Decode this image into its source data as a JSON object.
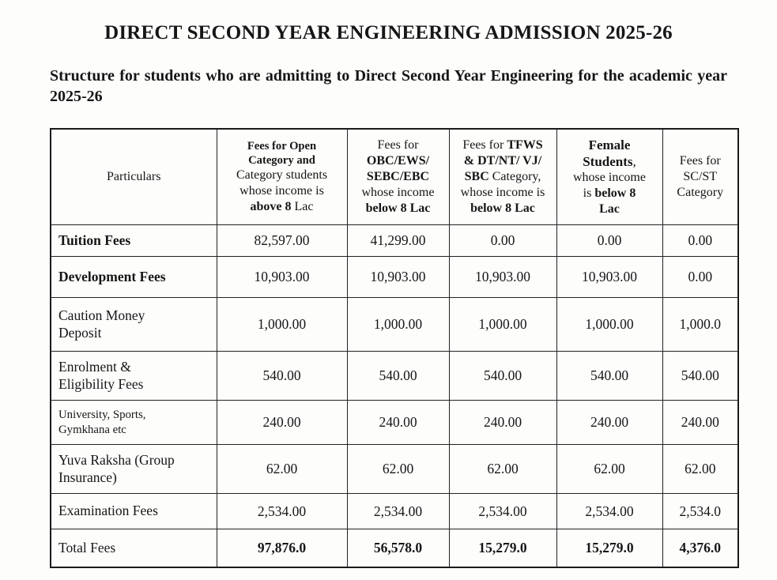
{
  "document": {
    "title": "DIRECT SECOND YEAR ENGINEERING ADMISSION 2025-26",
    "subtitle": "Structure for students who are admitting to Direct Second Year Engineering for the academic year 2025-26"
  },
  "table": {
    "header": {
      "particulars": "Particulars",
      "columns": [
        {
          "id": "open",
          "lines": [
            [
              {
                "t": "Fees for Open",
                "b": true
              }
            ],
            [
              {
                "t": "Category ",
                "b": true
              },
              {
                "t": "and",
                "b": true
              }
            ],
            [
              {
                "t": "Category students",
                "b": false
              }
            ],
            [
              {
                "t": "whose income is",
                "b": false
              }
            ],
            [
              {
                "t": "above 8",
                "b": true
              },
              {
                "t": " Lac",
                "b": false
              }
            ]
          ]
        },
        {
          "id": "obc-ews-sebc-ebc",
          "lines": [
            [
              {
                "t": "Fees for",
                "b": false
              }
            ],
            [
              {
                "t": "OBC/EWS/",
                "b": true
              }
            ],
            [
              {
                "t": "SEBC/EBC",
                "b": true
              }
            ],
            [
              {
                "t": "whose income",
                "b": false
              }
            ],
            [
              {
                "t": "below 8 Lac",
                "b": true
              }
            ]
          ]
        },
        {
          "id": "tfws-dt-nt-vj-sbc",
          "lines": [
            [
              {
                "t": "Fees for ",
                "b": false
              },
              {
                "t": "TFWS",
                "b": true
              }
            ],
            [
              {
                "t": "& DT/NT/ VJ/",
                "b": true
              }
            ],
            [
              {
                "t": "SBC",
                "b": true
              },
              {
                "t": " Category,",
                "b": false
              }
            ],
            [
              {
                "t": "whose income is",
                "b": false
              }
            ],
            [
              {
                "t": "below 8 Lac",
                "b": true
              }
            ]
          ]
        },
        {
          "id": "female",
          "lines": [
            [
              {
                "t": "Female",
                "b": true
              }
            ],
            [
              {
                "t": "Students",
                "b": true
              },
              {
                "t": ",",
                "b": false
              }
            ],
            [
              {
                "t": "whose income",
                "b": false
              }
            ],
            [
              {
                "t": "is ",
                "b": false
              },
              {
                "t": "below 8",
                "b": true
              }
            ],
            [
              {
                "t": "Lac",
                "b": true
              }
            ]
          ]
        },
        {
          "id": "sc-st",
          "lines": [
            [
              {
                "t": "Fees for",
                "b": false
              }
            ],
            [
              {
                "t": "SC/ST",
                "b": false
              }
            ],
            [
              {
                "t": "Category",
                "b": false
              }
            ]
          ]
        }
      ]
    },
    "rows": [
      {
        "label": "Tuition Fees",
        "label_bold": true,
        "values_bold": false,
        "values": [
          "82,597.00",
          "41,299.00",
          "0.00",
          "0.00",
          "0.00"
        ]
      },
      {
        "label": "Development Fees",
        "label_bold": true,
        "values_bold": false,
        "values": [
          "10,903.00",
          "10,903.00",
          "10,903.00",
          "10,903.00",
          "0.00"
        ]
      },
      {
        "label": "Caution Money\nDeposit",
        "label_bold": false,
        "values_bold": false,
        "values": [
          "1,000.00",
          "1,000.00",
          "1,000.00",
          "1,000.00",
          "1,000.0"
        ]
      },
      {
        "label": "Enrolment &\nEligibility Fees",
        "label_bold": false,
        "values_bold": false,
        "values": [
          "540.00",
          "540.00",
          "540.00",
          "540.00",
          "540.00"
        ]
      },
      {
        "label": "University, Sports,\nGymkhana etc",
        "label_bold": false,
        "values_bold": false,
        "values": [
          "240.00",
          "240.00",
          "240.00",
          "240.00",
          "240.00"
        ]
      },
      {
        "label": "Yuva Raksha (Group\nInsurance)",
        "label_bold": false,
        "values_bold": false,
        "values": [
          "62.00",
          "62.00",
          "62.00",
          "62.00",
          "62.00"
        ]
      },
      {
        "label": "Examination Fees",
        "label_bold": false,
        "values_bold": false,
        "values": [
          "2,534.00",
          "2,534.00",
          "2,534.00",
          "2,534.00",
          "2,534.0"
        ]
      },
      {
        "label": "Total Fees",
        "label_bold": false,
        "values_bold": true,
        "values": [
          "97,876.0",
          "56,578.0",
          "15,279.0",
          "15,279.0",
          "4,376.0"
        ]
      }
    ]
  }
}
